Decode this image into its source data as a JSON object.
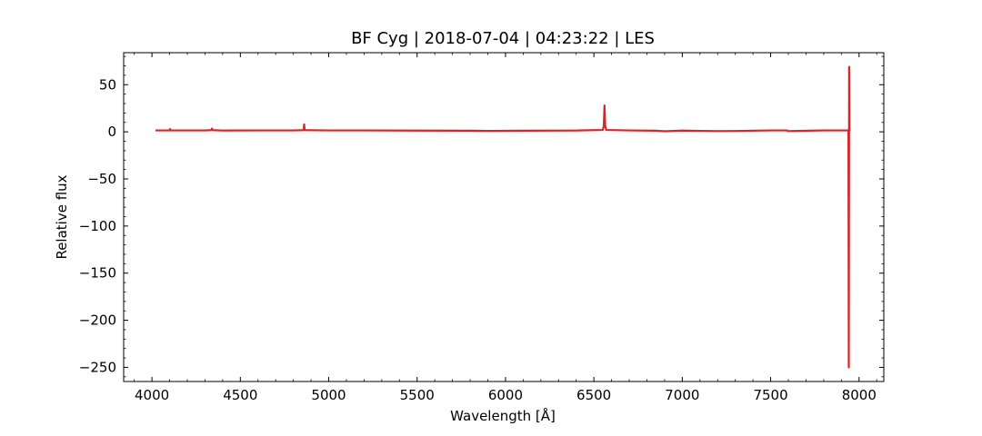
{
  "chart_data": {
    "type": "line",
    "title": "BF Cyg | 2018-07-04 | 04:23:22 | LES",
    "xlabel": "Wavelength [Å]",
    "ylabel": "Relative flux",
    "xlim": [
      3840,
      8140
    ],
    "ylim": [
      -265,
      84
    ],
    "xticks": [
      4000,
      4500,
      5000,
      5500,
      6000,
      6500,
      7000,
      7500,
      8000
    ],
    "xtick_labels": [
      "4000",
      "4500",
      "5000",
      "5500",
      "6000",
      "6500",
      "7000",
      "7500",
      "8000"
    ],
    "yticks": [
      50,
      0,
      -50,
      -100,
      -150,
      -200,
      -250
    ],
    "ytick_labels": [
      "50",
      "0",
      "−50",
      "−100",
      "−150",
      "−200",
      "−250"
    ],
    "grid": false,
    "series": [
      {
        "color": "#d62728",
        "points": [
          [
            4020,
            1.5
          ],
          [
            4100,
            1.5
          ],
          [
            4102,
            3.0
          ],
          [
            4104,
            1.5
          ],
          [
            4300,
            1.5
          ],
          [
            4338,
            1.8
          ],
          [
            4340,
            3.5
          ],
          [
            4342,
            1.8
          ],
          [
            4400,
            1.4
          ],
          [
            4600,
            1.5
          ],
          [
            4800,
            1.5
          ],
          [
            4858,
            1.8
          ],
          [
            4861,
            8.0
          ],
          [
            4864,
            1.8
          ],
          [
            5000,
            1.5
          ],
          [
            5200,
            1.5
          ],
          [
            5500,
            1.3
          ],
          [
            5800,
            1.2
          ],
          [
            5900,
            1.0
          ],
          [
            6100,
            1.2
          ],
          [
            6400,
            1.4
          ],
          [
            6550,
            2.0
          ],
          [
            6556,
            6.0
          ],
          [
            6560,
            28.0
          ],
          [
            6564,
            6.0
          ],
          [
            6570,
            2.0
          ],
          [
            6700,
            1.5
          ],
          [
            6850,
            1.2
          ],
          [
            6900,
            0.6
          ],
          [
            7000,
            1.3
          ],
          [
            7200,
            0.8
          ],
          [
            7300,
            0.9
          ],
          [
            7500,
            1.5
          ],
          [
            7590,
            1.5
          ],
          [
            7600,
            0.8
          ],
          [
            7650,
            1.0
          ],
          [
            7800,
            1.5
          ],
          [
            7940,
            1.5
          ],
          [
            7942,
            -250
          ],
          [
            7944,
            69
          ],
          [
            7946,
            1.5
          ],
          [
            7948,
            2.0
          ]
        ]
      }
    ]
  }
}
